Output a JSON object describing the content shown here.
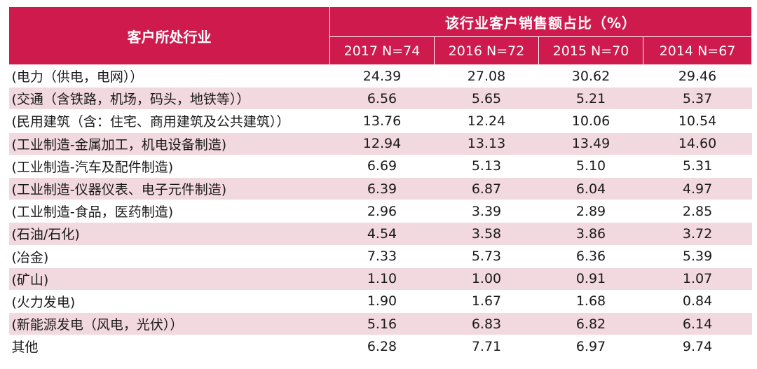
{
  "table": {
    "header": {
      "industry": "客户所处行业",
      "group": "该行业客户销售额占比（%）",
      "years": [
        "2017 N=74",
        "2016  N=72",
        "2015  N=70",
        "2014 N=67"
      ]
    },
    "rows": [
      {
        "name": "(电力（供电，电网））",
        "values": [
          "24.39",
          "27.08",
          "30.62",
          "29.46"
        ]
      },
      {
        "name": "(交通（含铁路，机场，码头，地铁等））",
        "values": [
          "6.56",
          "5.65",
          "5.21",
          "5.37"
        ]
      },
      {
        "name": "(民用建筑（含：住宅、商用建筑及公共建筑））",
        "values": [
          "13.76",
          "12.24",
          "10.06",
          "10.54"
        ]
      },
      {
        "name": "(工业制造-金属加工，机电设备制造)",
        "values": [
          "12.94",
          "13.13",
          "13.49",
          "14.60"
        ]
      },
      {
        "name": "(工业制造-汽车及配件制造)",
        "values": [
          "6.69",
          "5.13",
          "5.10",
          "5.31"
        ]
      },
      {
        "name": "(工业制造-仪器仪表、电子元件制造)",
        "values": [
          "6.39",
          "6.87",
          "6.04",
          "4.97"
        ]
      },
      {
        "name": "(工业制造-食品，医药制造)",
        "values": [
          "2.96",
          "3.39",
          "2.89",
          "2.85"
        ]
      },
      {
        "name": "(石油/石化)",
        "values": [
          "4.54",
          "3.58",
          "3.86",
          "3.72"
        ]
      },
      {
        "name": "(冶金)",
        "values": [
          "7.33",
          "5.73",
          "6.36",
          "5.39"
        ]
      },
      {
        "name": "(矿山)",
        "values": [
          "1.10",
          "1.00",
          "0.91",
          "1.07"
        ]
      },
      {
        "name": "(火力发电)",
        "values": [
          "1.90",
          "1.67",
          "1.68",
          "0.84"
        ]
      },
      {
        "name": "(新能源发电（风电，光伏））",
        "values": [
          "5.16",
          "6.83",
          "6.82",
          "6.14"
        ]
      },
      {
        "name": "其他",
        "values": [
          "6.28",
          "7.71",
          "6.97",
          "9.74"
        ]
      }
    ]
  },
  "colors": {
    "header_bg": "#cf1a4d",
    "header_text": "#ffffff",
    "stripe": "#f2d8df"
  }
}
